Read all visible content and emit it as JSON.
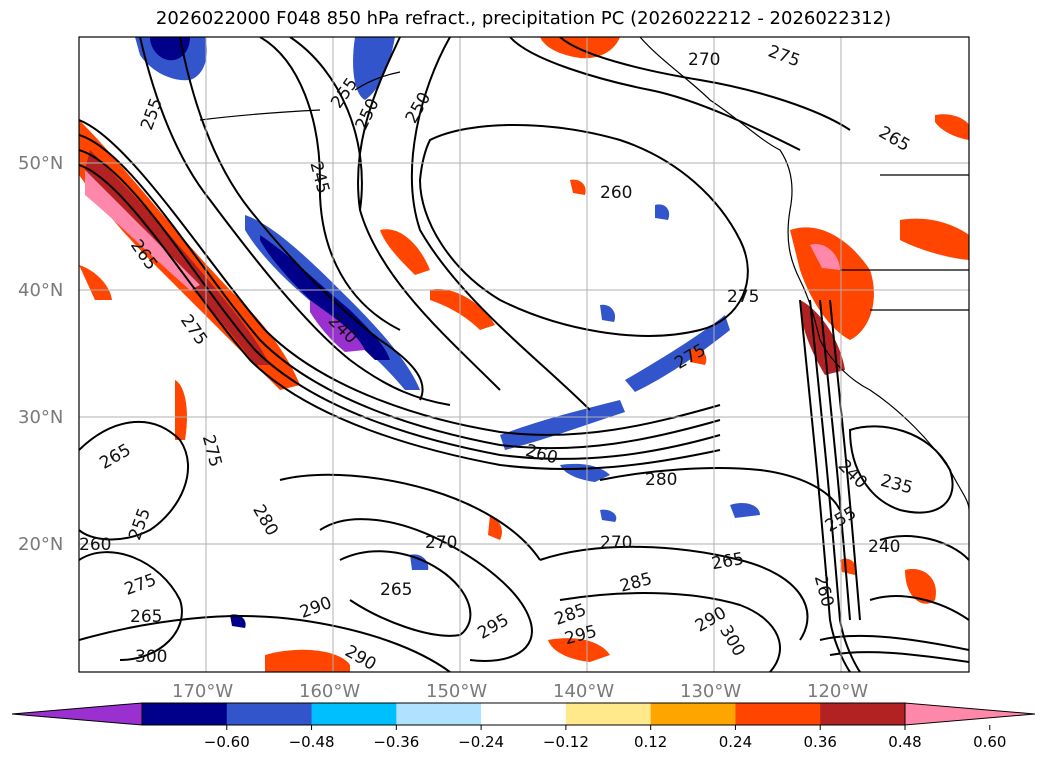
{
  "title": "2026022000 F048 850 hPa refract., precipitation PC (2026022212 - 2026022312)",
  "map": {
    "lat_labels": [
      "50°N",
      "40°N",
      "30°N",
      "20°N"
    ],
    "lon_labels": [
      "170°W",
      "160°W",
      "150°W",
      "140°W",
      "130°W",
      "120°W"
    ],
    "contour_labels": [
      {
        "text": "255"
      },
      {
        "text": "255"
      },
      {
        "text": "250"
      },
      {
        "text": "250"
      },
      {
        "text": "245"
      },
      {
        "text": "270"
      },
      {
        "text": "275"
      },
      {
        "text": "265"
      },
      {
        "text": "260"
      },
      {
        "text": "275"
      },
      {
        "text": "240"
      },
      {
        "text": "275"
      },
      {
        "text": "265"
      },
      {
        "text": "275"
      },
      {
        "text": "280"
      },
      {
        "text": "280"
      },
      {
        "text": "260"
      },
      {
        "text": "240"
      },
      {
        "text": "235"
      },
      {
        "text": "255"
      },
      {
        "text": "270"
      },
      {
        "text": "265"
      },
      {
        "text": "265"
      },
      {
        "text": "285"
      },
      {
        "text": "240"
      },
      {
        "text": "260"
      },
      {
        "text": "275"
      },
      {
        "text": "265"
      },
      {
        "text": "290"
      },
      {
        "text": "295"
      },
      {
        "text": "285"
      },
      {
        "text": "290"
      },
      {
        "text": "300"
      },
      {
        "text": "290"
      },
      {
        "text": "300"
      },
      {
        "text": "270"
      },
      {
        "text": "255"
      },
      {
        "text": "260"
      },
      {
        "text": "265"
      },
      {
        "text": "295"
      },
      {
        "text": "275"
      }
    ]
  },
  "colorbar": {
    "colors": [
      "#9b30d0",
      "#00008b",
      "#3355cc",
      "#00bfff",
      "#b0e2ff",
      "#ffffff",
      "#ffe98a",
      "#ffa500",
      "#ff4500",
      "#b22222",
      "#ff88aa"
    ],
    "tick_labels": [
      "−0.60",
      "−0.48",
      "−0.36",
      "−0.24",
      "−0.12",
      "0.12",
      "0.24",
      "0.36",
      "0.48",
      "0.60"
    ]
  },
  "colors": {
    "contour": "#000000",
    "grid": "#b0b0b0",
    "coast": "#000000"
  }
}
